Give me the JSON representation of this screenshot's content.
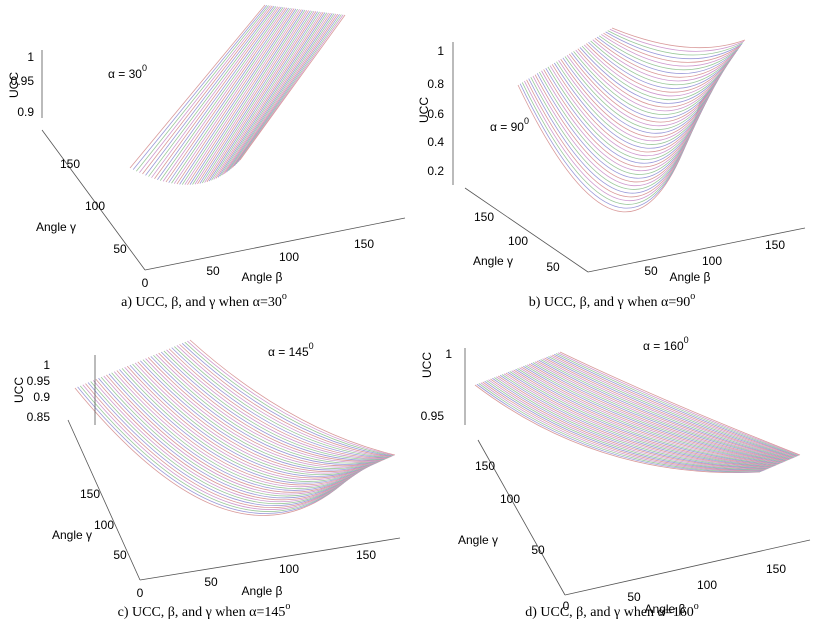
{
  "panels": [
    {
      "annotation": "α = 30",
      "annotation_sup": "0",
      "z_label": "UCC",
      "x_label": "Angle β",
      "y_label": "Angle γ",
      "z_ticks": [
        "1",
        "0.95",
        "0.9"
      ],
      "x_ticks": [
        "0",
        "50",
        "100",
        "150"
      ],
      "y_ticks": [
        "150",
        "100",
        "50"
      ],
      "caption": "a) UCC, β, and γ when α=30",
      "caption_sup": "o"
    },
    {
      "annotation": "α = 90",
      "annotation_sup": "0",
      "z_label": "UCC",
      "x_label": "Angle β",
      "y_label": "Angle γ",
      "z_ticks": [
        "1",
        "0.8",
        "0.6",
        "0.4",
        "0.2"
      ],
      "x_ticks": [
        "50",
        "100",
        "150"
      ],
      "y_ticks": [
        "150",
        "100",
        "50"
      ],
      "caption": "b) UCC, β, and γ when α=90",
      "caption_sup": "o"
    },
    {
      "annotation": "α = 145",
      "annotation_sup": "0",
      "z_label": "UCC",
      "x_label": "Angle β",
      "y_label": "Angle γ",
      "z_ticks": [
        "1",
        "0.95",
        "0.9",
        "0.85"
      ],
      "x_ticks": [
        "0",
        "50",
        "100",
        "150"
      ],
      "y_ticks": [
        "150",
        "100",
        "50"
      ],
      "caption": "c) UCC, β, and γ when α=145",
      "caption_sup": "o"
    },
    {
      "annotation": "α = 160",
      "annotation_sup": "0",
      "z_label": "UCC",
      "x_label": "Angle β",
      "y_label": "Angle γ",
      "z_ticks": [
        "1",
        "0.95"
      ],
      "x_ticks": [
        "0",
        "50",
        "100",
        "150"
      ],
      "y_ticks": [
        "150",
        "100",
        "50"
      ],
      "caption": "d) UCC, β, and γ when α=160",
      "caption_sup": "o"
    }
  ]
}
